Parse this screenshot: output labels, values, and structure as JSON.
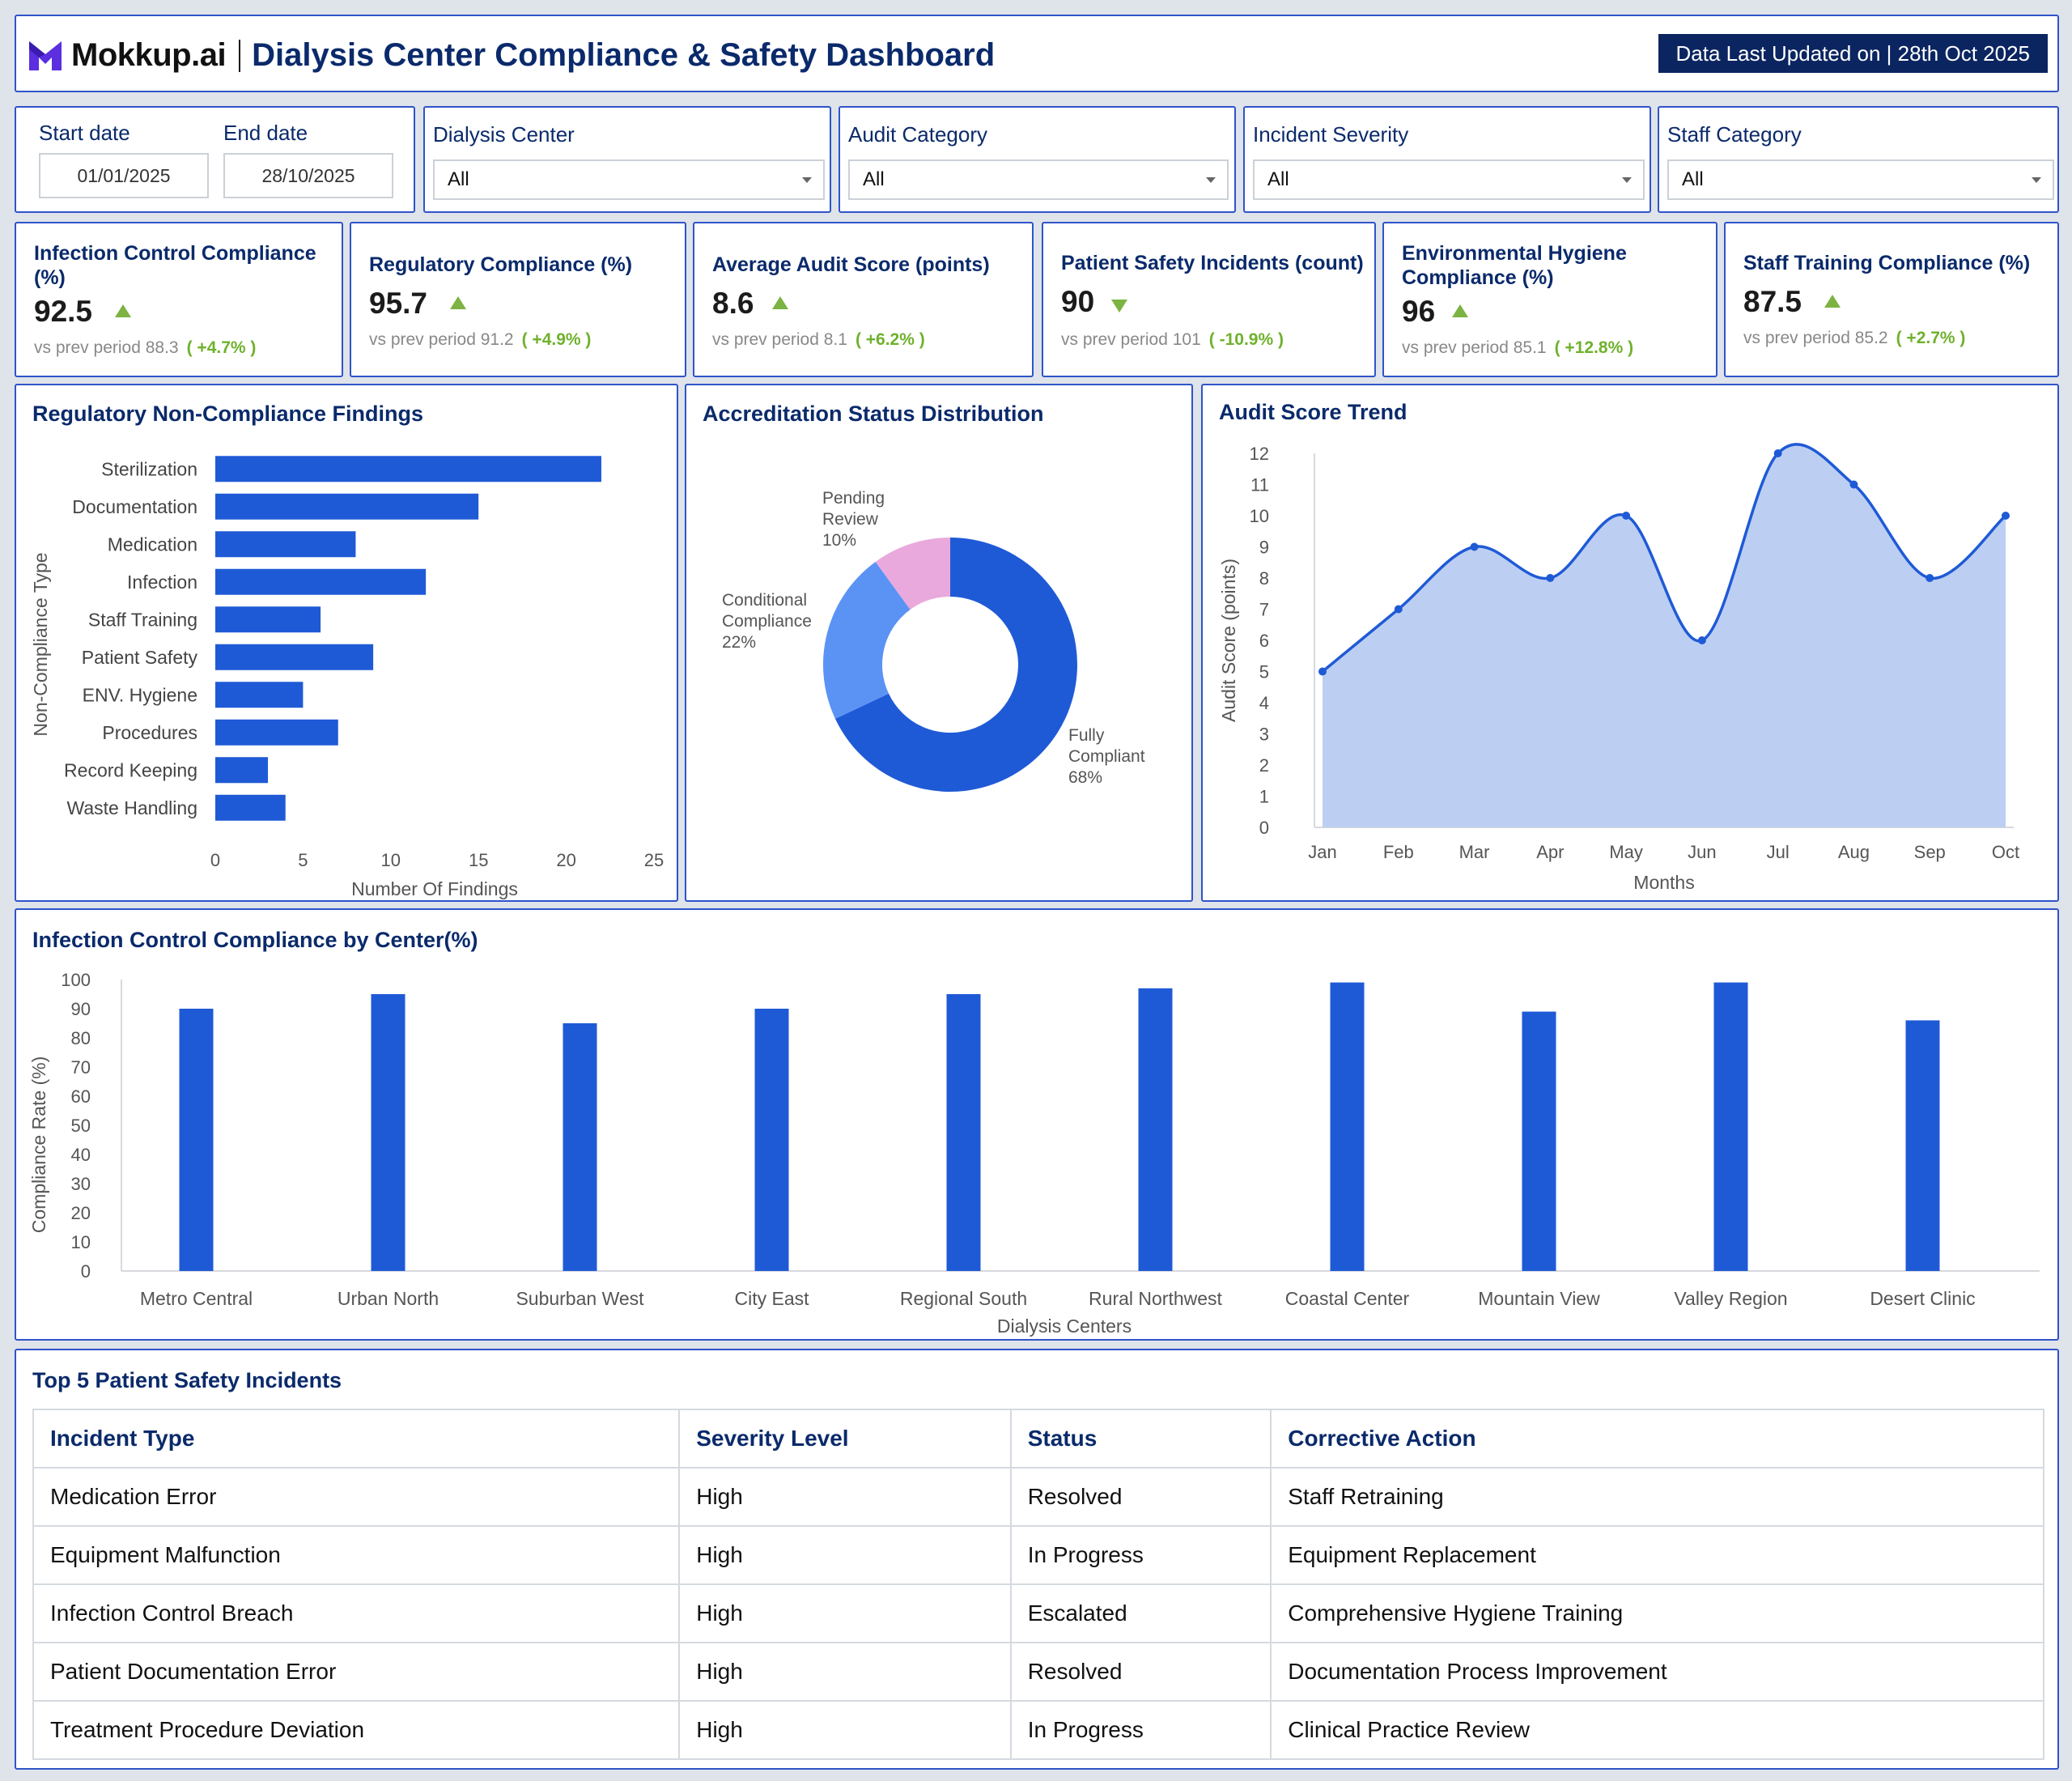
{
  "header": {
    "brand": "Mokkup.ai",
    "title": "Dialysis Center Compliance & Safety Dashboard",
    "updated": "Data Last Updated on | 28th Oct 2025"
  },
  "filters": {
    "start_label": "Start date",
    "start_value": "01/01/2025",
    "end_label": "End date",
    "end_value": "28/10/2025",
    "dropdowns": [
      {
        "label": "Dialysis Center",
        "value": "All"
      },
      {
        "label": "Audit Category",
        "value": "All"
      },
      {
        "label": "Incident Severity",
        "value": "All"
      },
      {
        "label": "Staff Category",
        "value": "All"
      }
    ]
  },
  "kpis": [
    {
      "title": "Infection Control Compliance (%)",
      "value": "92.5",
      "trend": "up",
      "prev": "vs prev period 88.3",
      "change": "( +4.7% )"
    },
    {
      "title": "Regulatory Compliance (%)",
      "value": "95.7",
      "trend": "up",
      "prev": "vs prev period 91.2",
      "change": "( +4.9% )"
    },
    {
      "title": "Average Audit Score (points)",
      "value": "8.6",
      "trend": "up",
      "prev": "vs prev period 8.1",
      "change": "( +6.2% )"
    },
    {
      "title": "Patient Safety Incidents (count)",
      "value": "90",
      "trend": "down",
      "prev": "vs prev period 101",
      "change": "( -10.9% )"
    },
    {
      "title": "Environmental Hygiene Compliance (%)",
      "value": "96",
      "trend": "up",
      "prev": "vs prev period 85.1",
      "change": "( +12.8% )"
    },
    {
      "title": "Staff Training Compliance (%)",
      "value": "87.5",
      "trend": "up",
      "prev": "vs prev period 85.2",
      "change": "( +2.7% )"
    }
  ],
  "chart_titles": {
    "findings": "Regulatory Non-Compliance Findings",
    "accreditation": "Accreditation Status Distribution",
    "audit": "Audit Score Trend",
    "infection": "Infection Control Compliance by Center(%)",
    "incidents": "Top 5 Patient Safety Incidents"
  },
  "chart_data": [
    {
      "type": "bar",
      "orientation": "horizontal",
      "title": "Regulatory Non-Compliance Findings",
      "categories": [
        "Sterilization",
        "Documentation",
        "Medication",
        "Infection",
        "Staff Training",
        "Patient Safety",
        "ENV. Hygiene",
        "Procedures",
        "Record Keeping",
        "Waste Handling"
      ],
      "values": [
        22,
        15,
        8,
        12,
        6,
        9,
        5,
        7,
        3,
        4
      ],
      "xlabel": "Number Of Findings",
      "ylabel": "Non-Compliance Type",
      "xlim": [
        0,
        25
      ],
      "xticks": [
        0,
        5,
        10,
        15,
        20,
        25
      ],
      "color": "#1f5ad6"
    },
    {
      "type": "pie",
      "donut": true,
      "title": "Accreditation Status Distribution",
      "slices": [
        {
          "label": "Fully Compliant",
          "value": 68,
          "pct": "68%",
          "color": "#1f5ad6"
        },
        {
          "label": "Conditional Compliance",
          "value": 22,
          "pct": "22%",
          "color": "#5b93f5"
        },
        {
          "label": "Pending Review",
          "value": 10,
          "pct": "10%",
          "color": "#e9a9dc"
        }
      ]
    },
    {
      "type": "area",
      "title": "Audit Score Trend",
      "categories": [
        "Jan",
        "Feb",
        "Mar",
        "Apr",
        "May",
        "Jun",
        "Jul",
        "Aug",
        "Sep",
        "Oct"
      ],
      "values": [
        5,
        7,
        9,
        8,
        10,
        6,
        12,
        11,
        8,
        10
      ],
      "xlabel": "Months",
      "ylabel": "Audit Score (points)",
      "ylim": [
        0,
        12
      ],
      "yticks": [
        0,
        1,
        2,
        3,
        4,
        5,
        6,
        7,
        8,
        9,
        10,
        11,
        12
      ],
      "line_color": "#1f5ad6",
      "fill_color": "#bccff3"
    },
    {
      "type": "bar",
      "title": "Infection Control Compliance by Center(%)",
      "categories": [
        "Metro Central",
        "Urban North",
        "Suburban West",
        "City East",
        "Regional South",
        "Rural Northwest",
        "Coastal Center",
        "Mountain View",
        "Valley Region",
        "Desert Clinic"
      ],
      "values": [
        90,
        95,
        85,
        90,
        95,
        97,
        99,
        89,
        99,
        86
      ],
      "xlabel": "Dialysis Centers",
      "ylabel": "Compliance Rate (%)",
      "ylim": [
        0,
        100
      ],
      "yticks": [
        0,
        10,
        20,
        30,
        40,
        50,
        60,
        70,
        80,
        90,
        100
      ],
      "color": "#1f5ad6"
    },
    {
      "type": "table",
      "title": "Top 5 Patient Safety Incidents",
      "columns": [
        "Incident Type",
        "Severity Level",
        "Status",
        "Corrective Action"
      ],
      "rows": [
        [
          "Medication Error",
          "High",
          "Resolved",
          "Staff Retraining"
        ],
        [
          "Equipment Malfunction",
          "High",
          "In Progress",
          "Equipment Replacement"
        ],
        [
          "Infection Control Breach",
          "High",
          "Escalated",
          "Comprehensive Hygiene Training"
        ],
        [
          "Patient Documentation Error",
          "High",
          "Resolved",
          "Documentation Process Improvement"
        ],
        [
          "Treatment Procedure Deviation",
          "High",
          "In Progress",
          "Clinical Practice Review"
        ]
      ]
    }
  ]
}
